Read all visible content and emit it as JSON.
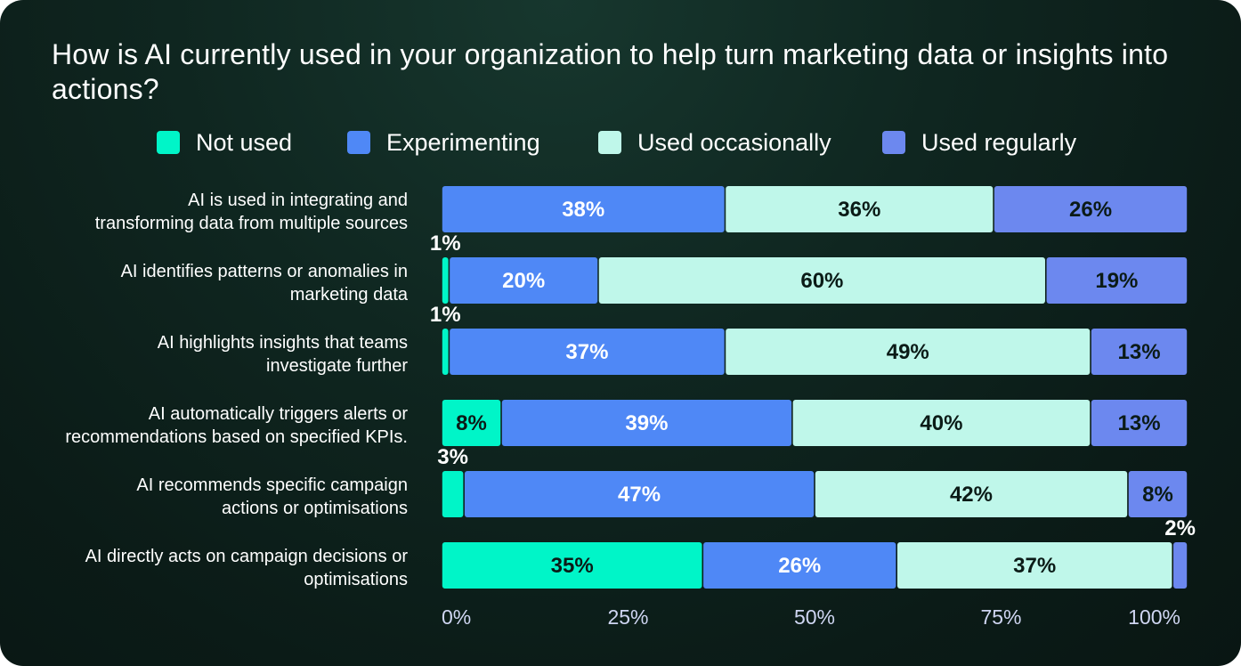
{
  "chart_data": {
    "type": "bar",
    "orientation": "horizontal",
    "stacked": true,
    "title": "How is AI currently used in your organization to help turn marketing data or insights into actions?",
    "legend_position": "top",
    "grid": false,
    "xlim": [
      0,
      100
    ],
    "x_ticks": [
      "0%",
      "25%",
      "50%",
      "75%",
      "100%"
    ],
    "categories": [
      [
        "AI is used in integrating and",
        "transforming data from multiple sources"
      ],
      [
        "AI identifies patterns or anomalies in",
        "marketing data"
      ],
      [
        "AI highlights insights that teams",
        "investigate further"
      ],
      [
        "AI automatically triggers alerts or",
        "recommendations based on specified KPIs."
      ],
      [
        "AI recommends specific campaign",
        "actions or optimisations"
      ],
      [
        "AI directly acts on campaign decisions or",
        "optimisations"
      ]
    ],
    "series": [
      {
        "name": "Not used",
        "color": "#00f5c8",
        "label_color": "#0b1b17",
        "values": [
          0,
          1,
          1,
          8,
          3,
          35
        ]
      },
      {
        "name": "Experimenting",
        "color": "#4f88f6",
        "label_color": "#ffffff",
        "values": [
          38,
          20,
          37,
          39,
          47,
          26
        ]
      },
      {
        "name": "Used occasionally",
        "color": "#bff7ea",
        "label_color": "#0b1b17",
        "values": [
          36,
          60,
          49,
          40,
          42,
          37
        ]
      },
      {
        "name": "Used regularly",
        "color": "#6c88ef",
        "label_color": "#0b1b17",
        "values": [
          26,
          19,
          13,
          13,
          8,
          2
        ]
      }
    ]
  }
}
